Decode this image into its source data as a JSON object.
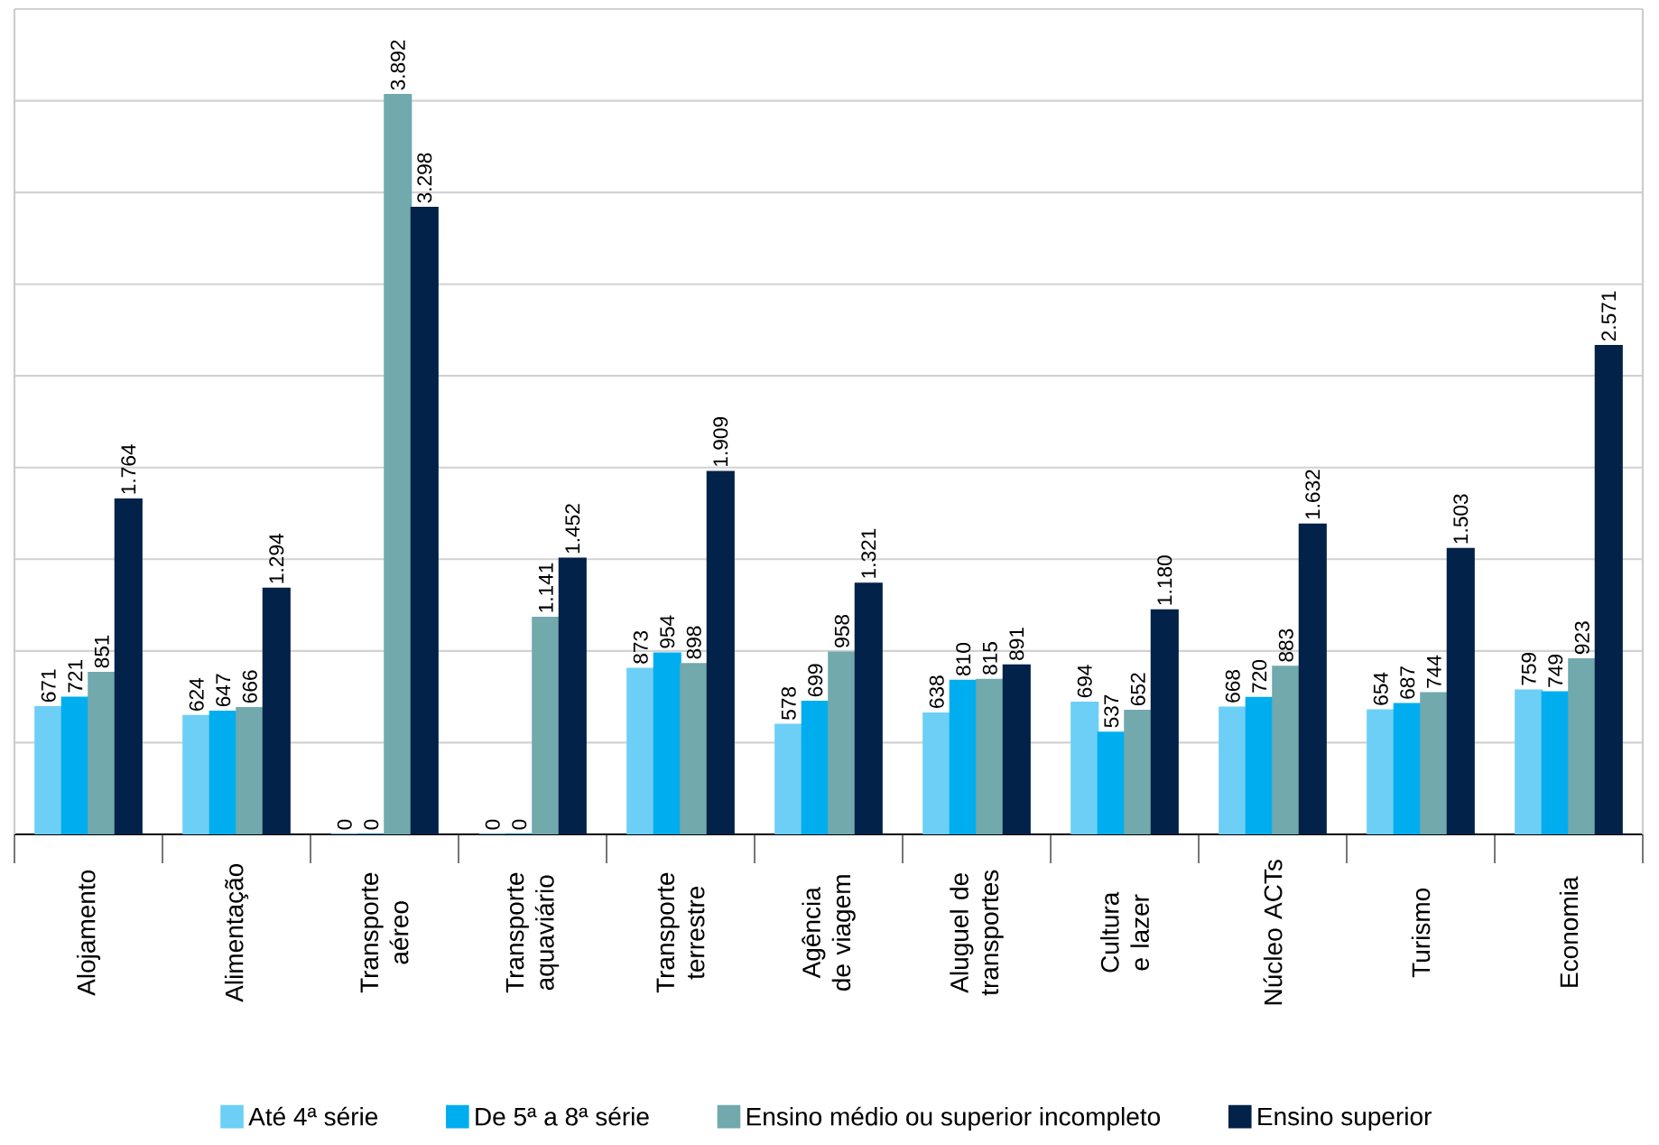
{
  "chart_data": {
    "type": "bar",
    "categories": [
      "Alojamento",
      "Alimentação",
      "Transporte aéreo",
      "Transporte aquaviário",
      "Transporte terrestre",
      "Agência de viagem",
      "Aluguel de transportes",
      "Cultura e lazer",
      "Núcleo ACTs",
      "Turismo",
      "Economia"
    ],
    "series": [
      {
        "name": "Até 4ª série",
        "color": "#6dcff6",
        "values": [
          671,
          624,
          0,
          0,
          873,
          578,
          638,
          694,
          668,
          654,
          759
        ],
        "value_labels": [
          "671",
          "624",
          "0",
          "0",
          "873",
          "578",
          "638",
          "694",
          "668",
          "654",
          "759"
        ]
      },
      {
        "name": "De 5ª a 8ª série",
        "color": "#00aeef",
        "values": [
          721,
          647,
          0,
          0,
          954,
          699,
          810,
          537,
          720,
          687,
          749
        ],
        "value_labels": [
          "721",
          "647",
          "0",
          "0",
          "954",
          "699",
          "810",
          "537",
          "720",
          "687",
          "749"
        ]
      },
      {
        "name": "Ensino médio ou superior incompleto",
        "color": "#72a9ad",
        "values": [
          851,
          666,
          3892,
          1141,
          898,
          958,
          815,
          652,
          883,
          744,
          923
        ],
        "value_labels": [
          "851",
          "666",
          "3.892",
          "1.141",
          "898",
          "958",
          "815",
          "652",
          "883",
          "744",
          "923"
        ]
      },
      {
        "name": "Ensino superior",
        "color": "#022249",
        "values": [
          1764,
          1294,
          3298,
          1452,
          1909,
          1321,
          891,
          1180,
          1632,
          1503,
          2571
        ],
        "value_labels": [
          "1.764",
          "1.294",
          "3.298",
          "1.452",
          "1.909",
          "1.321",
          "891",
          "1.180",
          "1.632",
          "1.503",
          "2.571"
        ]
      }
    ],
    "ylim": [
      0,
      4343
    ],
    "yticks": [
      {
        "value": 0,
        "label": null
      },
      {
        "value": 483,
        "label": null
      },
      {
        "value": 965,
        "label": null
      },
      {
        "value": 1448,
        "label": null
      },
      {
        "value": 1930,
        "label": null
      },
      {
        "value": 2413,
        "label": null
      },
      {
        "value": 2895,
        "label": null
      },
      {
        "value": 3378,
        "label": null
      },
      {
        "value": 3860,
        "label": null
      },
      {
        "value": 4343,
        "label": null
      }
    ],
    "grid": "y",
    "legend": "bottom",
    "tick_labels": "x"
  }
}
